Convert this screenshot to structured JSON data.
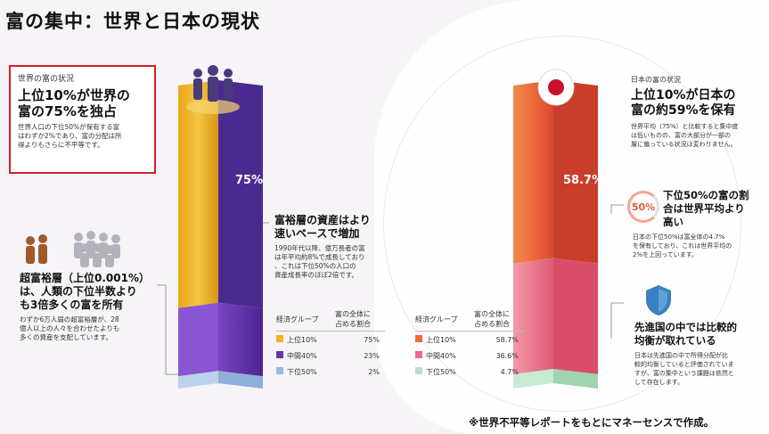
{
  "title": "富の集中：世界と日本の現状",
  "world": {
    "label": "世界の富の状況",
    "headline_line1": "上位10%が世界の",
    "headline_line2": "富の75%を独占",
    "desc_line1": "世界人口の下位50%が保有する富",
    "desc_line2": "はわずか2%であり、富の分配は所",
    "desc_line3": "得よりもさらに不平等です。",
    "bar_label": "75%",
    "growth_title_line1": "富裕層の資産はより",
    "growth_title_line2": "速いペースで増加",
    "growth_desc_line1": "1990年代以降、億万長者の富",
    "growth_desc_line2": "は年平均約8%で成長しており",
    "growth_desc_line3": "、これは下位50%の人口の",
    "growth_desc_line4": "資産成長率のほぼ2倍です。",
    "ultra_title_line1": "超富裕層（上位0.001%）",
    "ultra_title_line2": "は、人類の下位半数より",
    "ultra_title_line3": "も3倍多くの富を所有",
    "ultra_desc_line1": "わずか6万人弱の超富裕層が、28",
    "ultra_desc_line2": "億人以上の人々を合わせたよりも",
    "ultra_desc_line3": "多くの資産を支配しています。",
    "table_header_group": "経済グループ",
    "table_header_share_line1": "富の全体に",
    "table_header_share_line2": "占める割合"
  },
  "japan": {
    "label": "日本の富の状況",
    "headline_line1": "上位10%が日本の",
    "headline_line2": "富の約59%を保有",
    "desc_line1": "世界平均（75%）と比較すると集中度",
    "desc_line2": "は低いものの、富の大部分が一部の",
    "desc_line3": "層に偏っている状況は変わりません。",
    "bar_label": "58.7%",
    "ring_label": "50%",
    "half_title_line1": "下位50%の富の割",
    "half_title_line2": "合は世界平均より",
    "half_title_line3": "高い",
    "half_desc_line1": "日本の下位50%は富全体の4.7%",
    "half_desc_line2": "を保有しており、これは世界平均の",
    "half_desc_line3": "2%を上回っています。",
    "balance_title_line1": "先進国の中では比較的",
    "balance_title_line2": "均衡が取れている",
    "balance_desc_line1": "日本は先進国の中で所得分配が比",
    "balance_desc_line2": "較的均衡していると評価されていま",
    "balance_desc_line3": "すが、富の集中という課題は依然と",
    "balance_desc_line4": "して存在します。",
    "table_header_group": "経済グループ",
    "table_header_share_line1": "富の全体に",
    "table_header_share_line2": "占める割合"
  },
  "footer": "※世界不平等レポートをもとにマネーセンスで作成。",
  "colors": {
    "world_top": "#f2b324",
    "world_mid": "#6a36b0",
    "world_bottom": "#9ab9e0",
    "japan_top": "#ee6a3a",
    "japan_mid": "#ea6a88",
    "japan_bottom": "#b6e0c2"
  },
  "chart_data": [
    {
      "type": "bar",
      "categories": [
        "上位10%",
        "中間40%",
        "下位50%"
      ],
      "values": [
        75,
        23,
        2
      ],
      "value_labels": [
        "75%",
        "23%",
        "2%"
      ],
      "xlabel": "経済グループ",
      "ylabel": "富の全体に占める割合"
    },
    {
      "type": "bar",
      "categories": [
        "上位10%",
        "中間40%",
        "下位50%"
      ],
      "values": [
        58.7,
        36.6,
        4.7
      ],
      "value_labels": [
        "58.7%",
        "36.6%",
        "4.7%"
      ],
      "xlabel": "経済グループ",
      "ylabel": "富の全体に占める割合"
    }
  ]
}
